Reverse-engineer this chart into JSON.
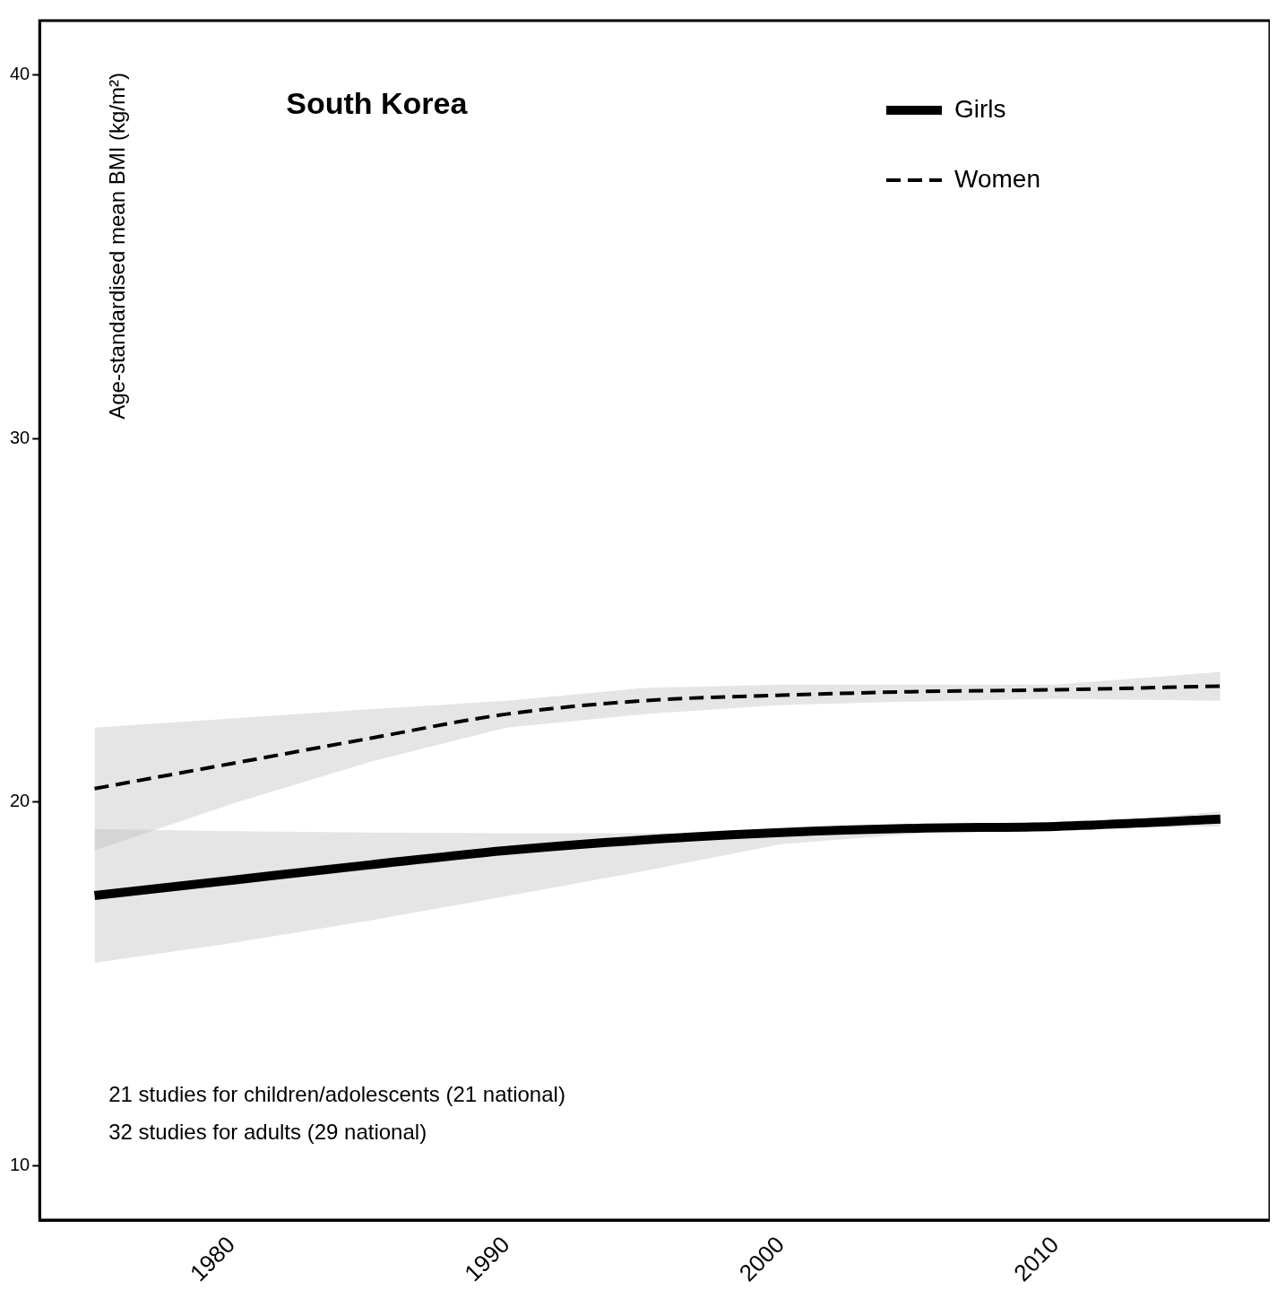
{
  "chart_data": {
    "type": "line",
    "title": "South Korea",
    "ylabel": "Age-standardised mean BMI (kg/m²)",
    "annotations": [
      "21 studies for children/adolescents (21 national)",
      "32 studies for adults (29 national)"
    ],
    "x": [
      1975,
      1980,
      1985,
      1990,
      1995,
      2000,
      2005,
      2010,
      2016
    ],
    "xlim": [
      1973,
      2017.8
    ],
    "xticks": [
      1980,
      1990,
      2000,
      2010
    ],
    "ylim": [
      8.5,
      41.5
    ],
    "yticks": [
      10,
      20,
      30,
      40
    ],
    "grid": false,
    "legend": "top right",
    "marker": "none",
    "series": [
      {
        "name": "Girls",
        "color": "#000000",
        "line_style": "solid",
        "values": [
          17.43,
          17.85,
          18.27,
          18.67,
          18.96,
          19.16,
          19.28,
          19.33,
          19.53
        ],
        "lower": [
          15.58,
          16.12,
          16.74,
          17.41,
          18.1,
          18.84,
          19.14,
          19.26,
          19.33
        ],
        "upper": [
          19.26,
          19.2,
          19.16,
          19.14,
          19.14,
          19.14,
          19.2,
          19.33,
          19.75
        ]
      },
      {
        "name": "Women",
        "color": "#000000",
        "line_style": "dashed",
        "values": [
          20.37,
          21.06,
          21.75,
          22.42,
          22.79,
          22.94,
          23.04,
          23.09,
          23.19
        ],
        "lower": [
          18.67,
          19.95,
          21.1,
          22.05,
          22.42,
          22.67,
          22.77,
          22.84,
          22.79
        ],
        "upper": [
          22.05,
          22.3,
          22.55,
          22.79,
          23.14,
          23.23,
          23.23,
          23.23,
          23.58
        ]
      }
    ]
  }
}
